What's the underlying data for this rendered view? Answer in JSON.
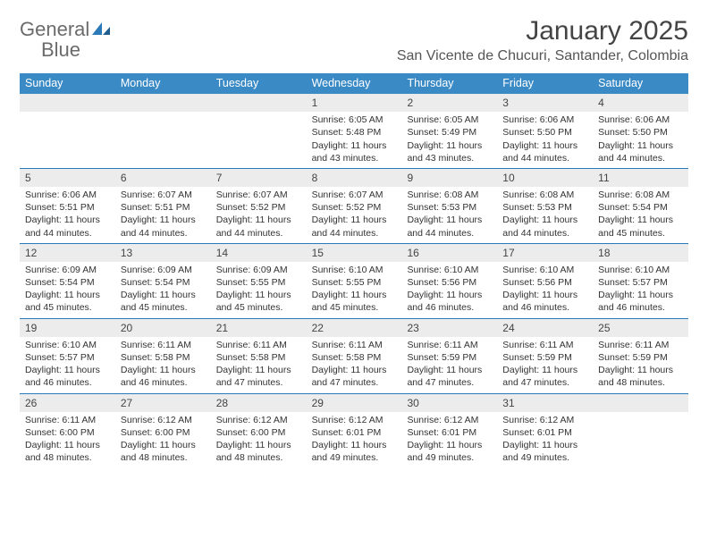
{
  "logo": {
    "text_gray": "General",
    "text_blue": "Blue"
  },
  "title": "January 2025",
  "location": "San Vicente de Chucuri, Santander, Colombia",
  "colors": {
    "header_blue": "#3a8ac6",
    "rule_blue": "#2a7ab9",
    "daynum_bg": "#ececec",
    "logo_gray": "#6b6b6b",
    "logo_blue": "#2a7ab9",
    "text": "#333333",
    "background": "#ffffff"
  },
  "typography": {
    "title_fontsize": 30,
    "location_fontsize": 16,
    "header_fontsize": 12.5,
    "daynum_fontsize": 12,
    "body_fontsize": 10.5,
    "logo_fontsize": 22
  },
  "day_names": [
    "Sunday",
    "Monday",
    "Tuesday",
    "Wednesday",
    "Thursday",
    "Friday",
    "Saturday"
  ],
  "weeks": [
    [
      null,
      null,
      null,
      {
        "n": "1",
        "sr": "6:05 AM",
        "ss": "5:48 PM",
        "dl": "11 hours and 43 minutes."
      },
      {
        "n": "2",
        "sr": "6:05 AM",
        "ss": "5:49 PM",
        "dl": "11 hours and 43 minutes."
      },
      {
        "n": "3",
        "sr": "6:06 AM",
        "ss": "5:50 PM",
        "dl": "11 hours and 44 minutes."
      },
      {
        "n": "4",
        "sr": "6:06 AM",
        "ss": "5:50 PM",
        "dl": "11 hours and 44 minutes."
      }
    ],
    [
      {
        "n": "5",
        "sr": "6:06 AM",
        "ss": "5:51 PM",
        "dl": "11 hours and 44 minutes."
      },
      {
        "n": "6",
        "sr": "6:07 AM",
        "ss": "5:51 PM",
        "dl": "11 hours and 44 minutes."
      },
      {
        "n": "7",
        "sr": "6:07 AM",
        "ss": "5:52 PM",
        "dl": "11 hours and 44 minutes."
      },
      {
        "n": "8",
        "sr": "6:07 AM",
        "ss": "5:52 PM",
        "dl": "11 hours and 44 minutes."
      },
      {
        "n": "9",
        "sr": "6:08 AM",
        "ss": "5:53 PM",
        "dl": "11 hours and 44 minutes."
      },
      {
        "n": "10",
        "sr": "6:08 AM",
        "ss": "5:53 PM",
        "dl": "11 hours and 44 minutes."
      },
      {
        "n": "11",
        "sr": "6:08 AM",
        "ss": "5:54 PM",
        "dl": "11 hours and 45 minutes."
      }
    ],
    [
      {
        "n": "12",
        "sr": "6:09 AM",
        "ss": "5:54 PM",
        "dl": "11 hours and 45 minutes."
      },
      {
        "n": "13",
        "sr": "6:09 AM",
        "ss": "5:54 PM",
        "dl": "11 hours and 45 minutes."
      },
      {
        "n": "14",
        "sr": "6:09 AM",
        "ss": "5:55 PM",
        "dl": "11 hours and 45 minutes."
      },
      {
        "n": "15",
        "sr": "6:10 AM",
        "ss": "5:55 PM",
        "dl": "11 hours and 45 minutes."
      },
      {
        "n": "16",
        "sr": "6:10 AM",
        "ss": "5:56 PM",
        "dl": "11 hours and 46 minutes."
      },
      {
        "n": "17",
        "sr": "6:10 AM",
        "ss": "5:56 PM",
        "dl": "11 hours and 46 minutes."
      },
      {
        "n": "18",
        "sr": "6:10 AM",
        "ss": "5:57 PM",
        "dl": "11 hours and 46 minutes."
      }
    ],
    [
      {
        "n": "19",
        "sr": "6:10 AM",
        "ss": "5:57 PM",
        "dl": "11 hours and 46 minutes."
      },
      {
        "n": "20",
        "sr": "6:11 AM",
        "ss": "5:58 PM",
        "dl": "11 hours and 46 minutes."
      },
      {
        "n": "21",
        "sr": "6:11 AM",
        "ss": "5:58 PM",
        "dl": "11 hours and 47 minutes."
      },
      {
        "n": "22",
        "sr": "6:11 AM",
        "ss": "5:58 PM",
        "dl": "11 hours and 47 minutes."
      },
      {
        "n": "23",
        "sr": "6:11 AM",
        "ss": "5:59 PM",
        "dl": "11 hours and 47 minutes."
      },
      {
        "n": "24",
        "sr": "6:11 AM",
        "ss": "5:59 PM",
        "dl": "11 hours and 47 minutes."
      },
      {
        "n": "25",
        "sr": "6:11 AM",
        "ss": "5:59 PM",
        "dl": "11 hours and 48 minutes."
      }
    ],
    [
      {
        "n": "26",
        "sr": "6:11 AM",
        "ss": "6:00 PM",
        "dl": "11 hours and 48 minutes."
      },
      {
        "n": "27",
        "sr": "6:12 AM",
        "ss": "6:00 PM",
        "dl": "11 hours and 48 minutes."
      },
      {
        "n": "28",
        "sr": "6:12 AM",
        "ss": "6:00 PM",
        "dl": "11 hours and 48 minutes."
      },
      {
        "n": "29",
        "sr": "6:12 AM",
        "ss": "6:01 PM",
        "dl": "11 hours and 49 minutes."
      },
      {
        "n": "30",
        "sr": "6:12 AM",
        "ss": "6:01 PM",
        "dl": "11 hours and 49 minutes."
      },
      {
        "n": "31",
        "sr": "6:12 AM",
        "ss": "6:01 PM",
        "dl": "11 hours and 49 minutes."
      },
      null
    ]
  ],
  "labels": {
    "sunrise": "Sunrise:",
    "sunset": "Sunset:",
    "daylight": "Daylight:"
  }
}
